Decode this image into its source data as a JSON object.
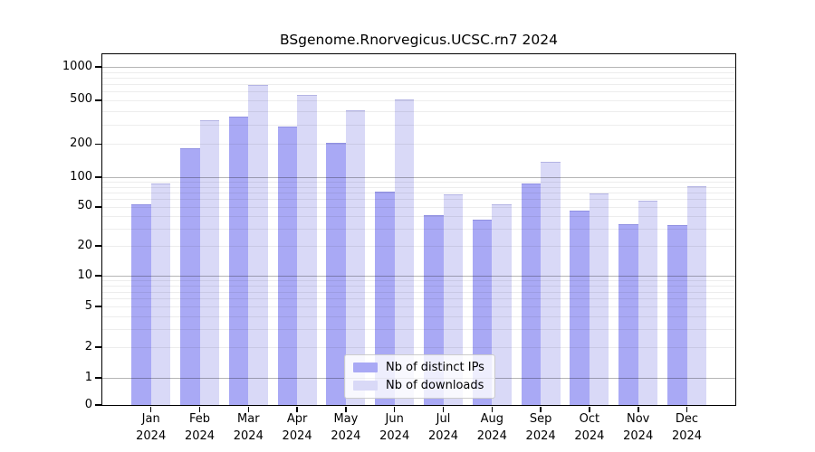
{
  "chart_data": {
    "type": "bar",
    "title": "BSgenome.Rnorvegicus.UCSC.rn7 2024",
    "categories": [
      "Jan",
      "Feb",
      "Mar",
      "Apr",
      "May",
      "Jun",
      "Jul",
      "Aug",
      "Sep",
      "Oct",
      "Nov",
      "Dec"
    ],
    "year": "2024",
    "series": [
      {
        "name": "Nb of distinct IPs",
        "key": "ips",
        "color": "#a9a9f5",
        "values": [
          52,
          180,
          350,
          280,
          200,
          70,
          40,
          36,
          85,
          45,
          33,
          32
        ]
      },
      {
        "name": "Nb of downloads",
        "key": "downloads",
        "color": "#d9d9f7",
        "values": [
          85,
          320,
          670,
          550,
          400,
          500,
          65,
          52,
          135,
          67,
          57,
          80
        ]
      }
    ],
    "xlabel": "",
    "ylabel": "",
    "yscale": "log-with-zero",
    "yticks": [
      1000,
      500,
      200,
      100,
      50,
      20,
      10,
      5,
      2,
      1,
      0
    ],
    "ylim": [
      0,
      1300
    ],
    "grid": true,
    "legend_position": "lower center"
  },
  "colors": {
    "background": "#ffffff",
    "axis": "#000000",
    "major_grid": "#b5b5b5",
    "minor_grid": "#ededed",
    "legend_border": "#cccccc"
  }
}
